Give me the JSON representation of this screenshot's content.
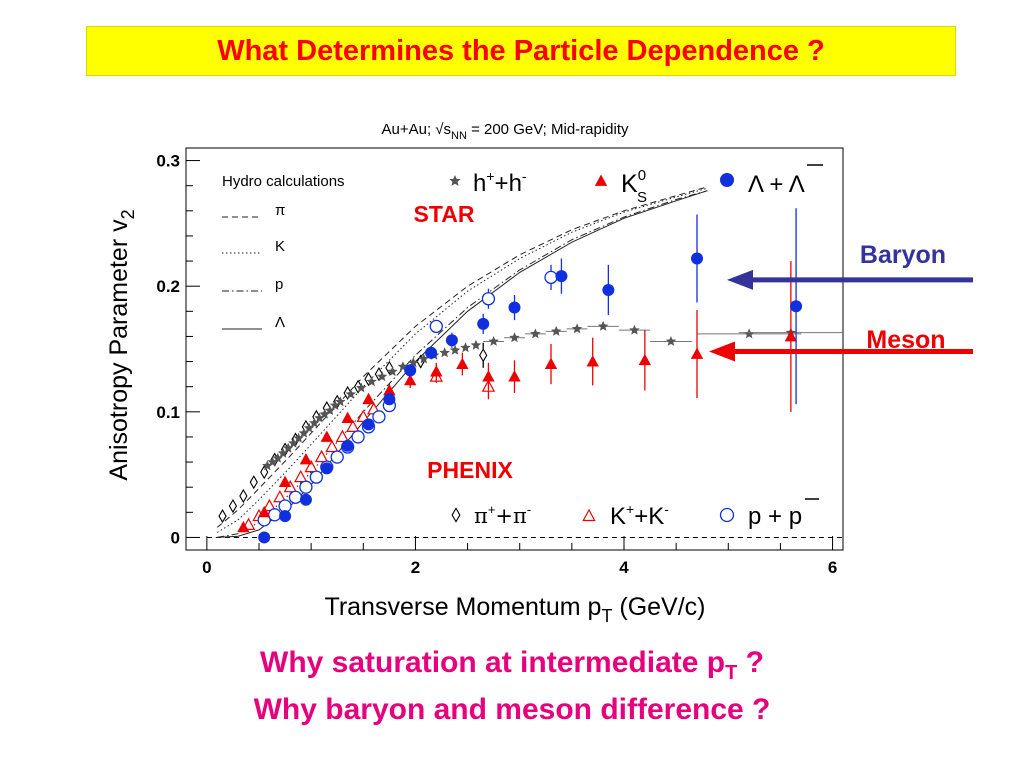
{
  "slide": {
    "title": "What Determines the Particle Dependence ?",
    "questions": [
      {
        "text": "Why saturation at intermediate p",
        "sub": "T",
        "tail": " ?"
      },
      {
        "text": "Why baryon and meson difference ?"
      }
    ],
    "arrows": {
      "baryon": {
        "label": "Baryon",
        "color": "#333399",
        "points_to_v2": 0.205
      },
      "meson": {
        "label": "Meson",
        "color": "#ee0000",
        "points_to_v2": 0.148
      }
    }
  },
  "chart_data": {
    "type": "scatter",
    "title": "Au+Au; √s_NN = 200 GeV; Mid-rapidity",
    "xlabel": "Transverse Momentum p_T (GeV/c)",
    "ylabel": "Anisotropy Parameter v_2",
    "xlim": [
      -0.2,
      6.1
    ],
    "ylim": [
      -0.01,
      0.31
    ],
    "xticks": [
      0,
      2,
      4,
      6
    ],
    "yticks": [
      0,
      0.1,
      0.2,
      0.3
    ],
    "grid": false,
    "experiment_labels": {
      "star": "STAR",
      "phenix": "PHENIX"
    },
    "legend": {
      "hydro_title": "Hydro calculations",
      "hydro_entries": [
        "π",
        "K",
        "p",
        "Λ"
      ]
    },
    "zero_line": true,
    "series": [
      {
        "name": "h⁺+h⁻",
        "group": "STAR",
        "marker": "star",
        "color": "#555555",
        "x": [
          0.58,
          0.63,
          0.68,
          0.73,
          0.78,
          0.83,
          0.88,
          0.93,
          0.98,
          1.03,
          1.08,
          1.13,
          1.18,
          1.23,
          1.28,
          1.38,
          1.48,
          1.58,
          1.68,
          1.78,
          1.88,
          1.98,
          2.08,
          2.18,
          2.28,
          2.38,
          2.48,
          2.58,
          2.75,
          2.95,
          3.15,
          3.35,
          3.55,
          3.8,
          4.1,
          4.45,
          5.2,
          5.6
        ],
        "y": [
          0.057,
          0.06,
          0.063,
          0.067,
          0.071,
          0.075,
          0.079,
          0.083,
          0.087,
          0.091,
          0.095,
          0.098,
          0.101,
          0.105,
          0.108,
          0.114,
          0.119,
          0.124,
          0.128,
          0.132,
          0.136,
          0.139,
          0.142,
          0.145,
          0.147,
          0.149,
          0.151,
          0.153,
          0.156,
          0.159,
          0.162,
          0.164,
          0.166,
          0.168,
          0.165,
          0.156,
          0.162,
          0.163
        ],
        "xerr": [
          0,
          0,
          0,
          0,
          0,
          0,
          0,
          0,
          0,
          0,
          0,
          0,
          0,
          0,
          0,
          0,
          0,
          0,
          0,
          0,
          0,
          0,
          0,
          0,
          0,
          0,
          0,
          0,
          0.1,
          0.1,
          0.1,
          0.1,
          0.1,
          0.15,
          0.15,
          0.2,
          0.5,
          0.5
        ]
      },
      {
        "name": "K⁰_S",
        "group": "STAR",
        "marker": "triangle",
        "color": "#ee0000",
        "x": [
          0.35,
          0.55,
          0.75,
          0.95,
          1.15,
          1.35,
          1.55,
          1.75,
          1.95,
          2.2,
          2.45,
          2.7,
          2.95,
          3.3,
          3.7,
          4.2,
          4.7,
          5.6
        ],
        "y": [
          0.008,
          0.02,
          0.044,
          0.062,
          0.08,
          0.095,
          0.11,
          0.117,
          0.125,
          0.132,
          0.138,
          0.128,
          0.128,
          0.138,
          0.14,
          0.141,
          0.146,
          0.16
        ],
        "yerr": [
          0.003,
          0.003,
          0.003,
          0.003,
          0.003,
          0.003,
          0.004,
          0.005,
          0.006,
          0.007,
          0.009,
          0.011,
          0.013,
          0.016,
          0.019,
          0.024,
          0.035,
          0.06
        ]
      },
      {
        "name": "Λ+Λ̄",
        "group": "STAR",
        "marker": "circle-filled",
        "color": "#1030dd",
        "x": [
          0.55,
          0.75,
          0.95,
          1.15,
          1.35,
          1.55,
          1.75,
          1.95,
          2.15,
          2.35,
          2.65,
          2.95,
          3.4,
          3.85,
          4.7,
          5.65
        ],
        "y": [
          0.0,
          0.017,
          0.03,
          0.055,
          0.073,
          0.09,
          0.11,
          0.133,
          0.147,
          0.157,
          0.17,
          0.183,
          0.208,
          0.197,
          0.222,
          0.184
        ],
        "yerr": [
          0.004,
          0.004,
          0.004,
          0.004,
          0.004,
          0.004,
          0.004,
          0.005,
          0.005,
          0.006,
          0.008,
          0.01,
          0.014,
          0.02,
          0.035,
          0.078
        ]
      },
      {
        "name": "π⁺+π⁻",
        "group": "PHENIX",
        "marker": "diamond-open",
        "color": "#000000",
        "x": [
          0.15,
          0.25,
          0.35,
          0.45,
          0.55,
          0.65,
          0.75,
          0.85,
          0.95,
          1.05,
          1.15,
          1.25,
          1.35,
          1.45,
          1.55,
          1.65,
          1.75,
          2.05,
          2.65
        ],
        "y": [
          0.017,
          0.025,
          0.033,
          0.044,
          0.052,
          0.062,
          0.07,
          0.078,
          0.088,
          0.096,
          0.103,
          0.108,
          0.115,
          0.12,
          0.126,
          0.13,
          0.135,
          0.14,
          0.145
        ],
        "yerr": [
          0,
          0,
          0,
          0,
          0,
          0,
          0,
          0,
          0,
          0,
          0,
          0,
          0,
          0,
          0,
          0,
          0,
          0.005,
          0.01
        ]
      },
      {
        "name": "K⁺+K⁻",
        "group": "PHENIX",
        "marker": "triangle-open",
        "color": "#ee0000",
        "x": [
          0.4,
          0.5,
          0.6,
          0.7,
          0.8,
          0.9,
          1.0,
          1.1,
          1.2,
          1.3,
          1.4,
          1.5,
          1.6,
          1.75,
          2.2,
          2.7
        ],
        "y": [
          0.01,
          0.017,
          0.025,
          0.032,
          0.04,
          0.048,
          0.056,
          0.064,
          0.072,
          0.08,
          0.088,
          0.096,
          0.102,
          0.11,
          0.128,
          0.12
        ],
        "yerr": [
          0,
          0,
          0,
          0,
          0,
          0,
          0,
          0,
          0,
          0,
          0,
          0,
          0,
          0,
          0.005,
          0.01
        ]
      },
      {
        "name": "p+p̄",
        "group": "PHENIX",
        "marker": "circle-open",
        "color": "#1030dd",
        "x": [
          0.55,
          0.65,
          0.75,
          0.85,
          0.95,
          1.05,
          1.15,
          1.25,
          1.35,
          1.45,
          1.55,
          1.65,
          1.75,
          2.2,
          2.7,
          3.3
        ],
        "y": [
          0.014,
          0.018,
          0.025,
          0.032,
          0.04,
          0.048,
          0.056,
          0.064,
          0.072,
          0.08,
          0.088,
          0.096,
          0.105,
          0.168,
          0.19,
          0.207
        ],
        "yerr": [
          0,
          0,
          0,
          0,
          0,
          0,
          0,
          0,
          0,
          0,
          0,
          0,
          0,
          0.005,
          0.008,
          0.01
        ]
      }
    ],
    "hydro_curves": [
      {
        "name": "π",
        "style": "dashed",
        "x": [
          0.1,
          0.3,
          0.5,
          0.8,
          1.0,
          1.5,
          2.0,
          2.5,
          3.0,
          3.5,
          4.0,
          4.5,
          4.8
        ],
        "y": [
          0.008,
          0.022,
          0.039,
          0.065,
          0.083,
          0.128,
          0.168,
          0.2,
          0.225,
          0.245,
          0.26,
          0.272,
          0.279
        ]
      },
      {
        "name": "K",
        "style": "dotted",
        "x": [
          0.1,
          0.3,
          0.5,
          0.8,
          1.0,
          1.5,
          2.0,
          2.5,
          3.0,
          3.5,
          4.0,
          4.5,
          4.8
        ],
        "y": [
          0.004,
          0.014,
          0.03,
          0.056,
          0.074,
          0.12,
          0.162,
          0.196,
          0.222,
          0.243,
          0.259,
          0.271,
          0.278
        ]
      },
      {
        "name": "p",
        "style": "dashdot",
        "x": [
          0.1,
          0.3,
          0.5,
          0.8,
          1.0,
          1.5,
          2.0,
          2.5,
          3.0,
          3.5,
          4.0,
          4.5,
          4.8
        ],
        "y": [
          0.0,
          0.003,
          0.012,
          0.035,
          0.052,
          0.1,
          0.145,
          0.183,
          0.213,
          0.237,
          0.255,
          0.269,
          0.276
        ]
      },
      {
        "name": "Λ",
        "style": "solid",
        "x": [
          0.1,
          0.3,
          0.5,
          0.8,
          1.0,
          1.5,
          2.0,
          2.5,
          3.0,
          3.5,
          4.0,
          4.5,
          4.8
        ],
        "y": [
          0.0,
          0.001,
          0.006,
          0.025,
          0.042,
          0.092,
          0.14,
          0.18,
          0.211,
          0.235,
          0.254,
          0.268,
          0.276
        ]
      }
    ]
  }
}
